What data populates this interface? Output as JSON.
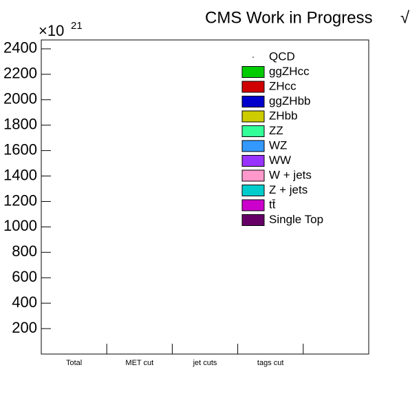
{
  "chart_data": {
    "type": "bar",
    "stacked": true,
    "title": "CMS Work in Progress",
    "lumi": "√",
    "y_multiplier": "×10",
    "y_exponent": "21",
    "categories": [
      "Total",
      "MET cut",
      "jet cuts",
      "tags cut",
      null
    ],
    "series": [
      {
        "name": "QCD",
        "color": null,
        "values": [
          0,
          0,
          0,
          0,
          0
        ]
      },
      {
        "name": "ggZHcc",
        "color": "#00cc00",
        "values": [
          0,
          0,
          0,
          0,
          0
        ]
      },
      {
        "name": "ZHcc",
        "color": "#d10000",
        "values": [
          0,
          0,
          0,
          0,
          0
        ]
      },
      {
        "name": "ggZHbb",
        "color": "#0000cc",
        "values": [
          0,
          0,
          0,
          0,
          0
        ]
      },
      {
        "name": "ZHbb",
        "color": "#cccc00",
        "values": [
          0,
          0,
          0,
          0,
          0
        ]
      },
      {
        "name": "ZZ",
        "color": "#33ff99",
        "values": [
          0,
          0,
          0,
          0,
          0
        ]
      },
      {
        "name": "WZ",
        "color": "#3399ff",
        "values": [
          0,
          0,
          0,
          0,
          0
        ]
      },
      {
        "name": "WW",
        "color": "#9933ff",
        "values": [
          0,
          0,
          0,
          0,
          0
        ]
      },
      {
        "name": "W + jets",
        "color": "#ff99cc",
        "values": [
          0,
          0,
          0,
          0,
          0
        ]
      },
      {
        "name": "Z + jets",
        "color": "#00cccc",
        "values": [
          0,
          0,
          0,
          0,
          0
        ]
      },
      {
        "name": "tt̄",
        "color": "#cc00cc",
        "values": [
          0,
          0,
          0,
          0,
          0
        ]
      },
      {
        "name": "Single Top",
        "color": "#660066",
        "values": [
          0,
          0,
          0,
          0,
          0
        ]
      }
    ],
    "ylim": [
      0,
      2470
    ],
    "yticks": [
      200,
      400,
      600,
      800,
      1000,
      1200,
      1400,
      1600,
      1800,
      2000,
      2200,
      2400
    ]
  }
}
